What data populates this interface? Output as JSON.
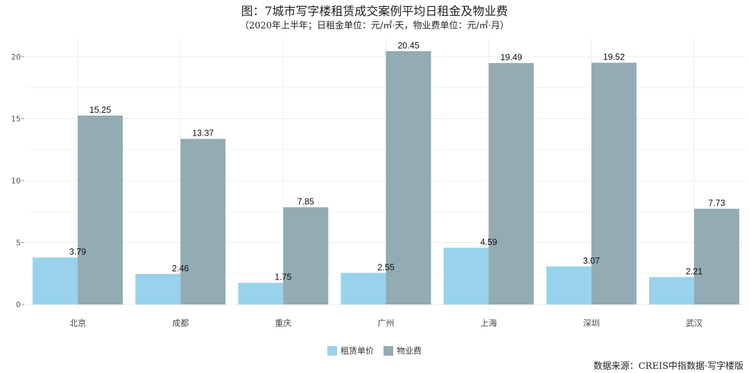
{
  "title": "图：7城市写字楼租赁成交案例平均日租金及物业费",
  "subtitle": "（2020年上半年；日租金单位：元/㎡·天，物业费单位：元/㎡·月）",
  "source": "数据来源：CREIS中指数据·写字楼版",
  "colors": {
    "rent": "#98d2ec",
    "fee": "#93abb3",
    "grid": "#ebebeb"
  },
  "chart_data": {
    "type": "bar",
    "categories": [
      "北京",
      "成都",
      "重庆",
      "广州",
      "上海",
      "深圳",
      "武汉"
    ],
    "series": [
      {
        "name": "租赁单价",
        "values": [
          3.79,
          2.46,
          1.75,
          2.55,
          4.59,
          3.07,
          2.21
        ]
      },
      {
        "name": "物业费",
        "values": [
          15.25,
          13.37,
          7.85,
          20.45,
          19.49,
          19.52,
          7.73
        ]
      }
    ],
    "ylim": [
      0,
      22
    ],
    "yticks": [
      0,
      5,
      10,
      15,
      20
    ],
    "grid": true,
    "legend": "bottom"
  }
}
